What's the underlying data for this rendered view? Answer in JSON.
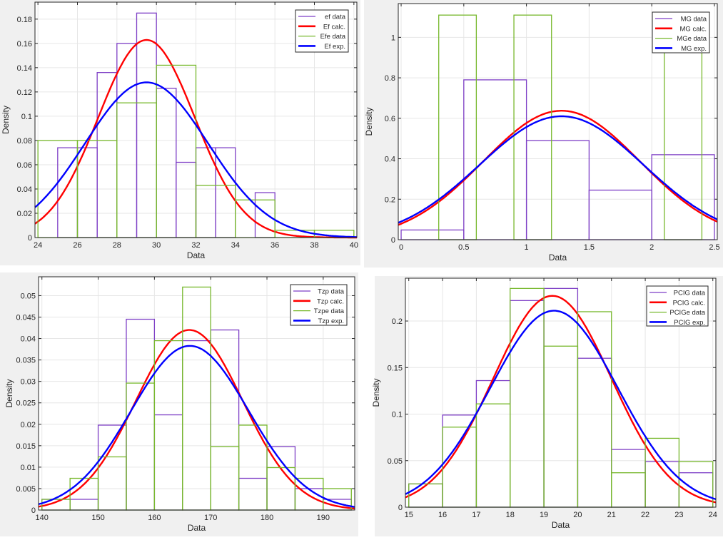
{
  "colors": {
    "hist_a": "#7e3fc6",
    "hist_b": "#77b82c",
    "calc": "#ff0000",
    "exp": "#0000ff",
    "figure_bg": "#f0f0f0",
    "grid": "#e6e6e6"
  },
  "chart_data": [
    {
      "type": "histogram+line",
      "xlabel": "Data",
      "ylabel": "Density",
      "xlim": [
        23.85,
        40.15
      ],
      "ylim": [
        0,
        0.194
      ],
      "grid": true,
      "legend_position": "top-right",
      "xticks": [
        "24",
        "26",
        "28",
        "30",
        "32",
        "34",
        "36",
        "38",
        "40"
      ],
      "xtick_values": [
        24,
        26,
        28,
        30,
        32,
        34,
        36,
        38,
        40
      ],
      "yticks": [
        "0",
        "0.02",
        "0.04",
        "0.06",
        "0.08",
        "0.1",
        "0.12",
        "0.14",
        "0.16",
        "0.18"
      ],
      "ytick_values": [
        0,
        0.02,
        0.04,
        0.06,
        0.08,
        0.1,
        0.12,
        0.14,
        0.16,
        0.18
      ],
      "series": [
        {
          "name": "ef data",
          "kind": "hist",
          "color_key": "hist_a",
          "edges": [
            25,
            26,
            27,
            28,
            29,
            30,
            31,
            32,
            33,
            34,
            35,
            36
          ],
          "values": [
            0.074,
            0.074,
            0.136,
            0.16,
            0.185,
            0.123,
            0.062,
            0.074,
            0.074,
            0,
            0.037
          ]
        },
        {
          "name": "Ef calc.",
          "kind": "normal",
          "color_key": "calc",
          "mean": 29.5,
          "sigma": 2.45
        },
        {
          "name": "Efe data",
          "kind": "hist",
          "color_key": "hist_b",
          "edges": [
            24,
            26,
            28,
            30,
            32,
            34,
            36,
            38,
            40
          ],
          "values": [
            0.08,
            0.08,
            0.111,
            0.142,
            0.043,
            0.031,
            0.006,
            0.006
          ]
        },
        {
          "name": "Ef exp.",
          "kind": "normal",
          "color_key": "exp",
          "mean": 29.5,
          "sigma": 3.12
        }
      ]
    },
    {
      "type": "histogram+line",
      "xlabel": "Data",
      "ylabel": "Density",
      "xlim": [
        -0.023,
        2.523
      ],
      "ylim": [
        0,
        1.167
      ],
      "grid": true,
      "legend_position": "top-right",
      "xticks": [
        "0",
        "0.5",
        "1",
        "1.5",
        "2",
        "2.5"
      ],
      "xtick_values": [
        0,
        0.5,
        1,
        1.5,
        2,
        2.5
      ],
      "yticks": [
        "0",
        "0.2",
        "0.4",
        "0.6",
        "0.8",
        "1"
      ],
      "ytick_values": [
        0,
        0.2,
        0.4,
        0.6,
        0.8,
        1
      ],
      "series": [
        {
          "name": "MG data",
          "kind": "hist",
          "color_key": "hist_a",
          "edges": [
            0,
            0.5,
            1,
            1.5,
            2,
            2.5
          ],
          "values": [
            0.048,
            0.79,
            0.49,
            0.245,
            0.42
          ]
        },
        {
          "name": "MG calc.",
          "kind": "normal",
          "color_key": "calc",
          "mean": 1.28,
          "sigma": 0.626
        },
        {
          "name": "MGe data",
          "kind": "hist",
          "color_key": "hist_b",
          "edges": [
            0.3,
            0.6,
            0.9,
            1.2,
            1.5,
            1.8,
            2.1,
            2.4
          ],
          "values": [
            1.11,
            0,
            1.11,
            0,
            0,
            0,
            1.11
          ]
        },
        {
          "name": "MG exp.",
          "kind": "normal",
          "color_key": "exp",
          "mean": 1.28,
          "sigma": 0.654
        }
      ]
    },
    {
      "type": "histogram+line",
      "xlabel": "Data",
      "ylabel": "Density",
      "xlim": [
        139.4,
        195.6
      ],
      "ylim": [
        0,
        0.0544
      ],
      "grid": true,
      "legend_position": "top-right",
      "xticks": [
        "140",
        "150",
        "160",
        "170",
        "180",
        "190"
      ],
      "xtick_values": [
        140,
        150,
        160,
        170,
        180,
        190
      ],
      "yticks": [
        "0",
        "0.005",
        "0.01",
        "0.015",
        "0.02",
        "0.025",
        "0.03",
        "0.035",
        "0.04",
        "0.045",
        "0.05"
      ],
      "ytick_values": [
        0,
        0.005,
        0.01,
        0.015,
        0.02,
        0.025,
        0.03,
        0.035,
        0.04,
        0.045,
        0.05
      ],
      "series": [
        {
          "name": "Tzp data",
          "kind": "hist",
          "color_key": "hist_a",
          "edges": [
            140,
            145,
            150,
            155,
            160,
            165,
            170,
            175,
            180,
            185,
            190,
            195
          ],
          "values": [
            0.0025,
            0.0025,
            0.0198,
            0.0445,
            0.0222,
            0.0395,
            0.042,
            0.0074,
            0.0148,
            0.005,
            0.0025
          ]
        },
        {
          "name": "Tzp calc.",
          "kind": "normal",
          "color_key": "calc",
          "mean": 166.2,
          "sigma": 9.5
        },
        {
          "name": "Tzpe data",
          "kind": "hist",
          "color_key": "hist_b",
          "edges": [
            140,
            145,
            150,
            155,
            160,
            165,
            170,
            175,
            180,
            185,
            190,
            195
          ],
          "values": [
            0.0025,
            0.0074,
            0.0124,
            0.0296,
            0.0395,
            0.052,
            0.0148,
            0.0198,
            0.0099,
            0.0074,
            0.005
          ]
        },
        {
          "name": "Tzp exp.",
          "kind": "normal",
          "color_key": "exp",
          "mean": 166.3,
          "sigma": 10.42
        }
      ]
    },
    {
      "type": "histogram+line",
      "xlabel": "Data",
      "ylabel": "Density",
      "xlim": [
        14.9,
        24.09
      ],
      "ylim": [
        0,
        0.246
      ],
      "grid": true,
      "legend_position": "top-right",
      "xticks": [
        "15",
        "16",
        "17",
        "18",
        "19",
        "20",
        "21",
        "22",
        "23",
        "24"
      ],
      "xtick_values": [
        15,
        16,
        17,
        18,
        19,
        20,
        21,
        22,
        23,
        24
      ],
      "yticks": [
        "0",
        "0.05",
        "0.1",
        "0.15",
        "0.2"
      ],
      "ytick_values": [
        0,
        0.05,
        0.1,
        0.15,
        0.2
      ],
      "series": [
        {
          "name": "PCIG data",
          "kind": "hist",
          "color_key": "hist_a",
          "edges": [
            15,
            16,
            17,
            18,
            19,
            20,
            21,
            22,
            23,
            24
          ],
          "values": [
            0.025,
            0.099,
            0.136,
            0.222,
            0.235,
            0.16,
            0.062,
            0.049,
            0.037
          ]
        },
        {
          "name": "PCIG calc.",
          "kind": "normal",
          "color_key": "calc",
          "mean": 19.25,
          "sigma": 1.757
        },
        {
          "name": "PCIGe data",
          "kind": "hist",
          "color_key": "hist_b",
          "edges": [
            15,
            16,
            17,
            18,
            19,
            20,
            21,
            22,
            23,
            24
          ],
          "values": [
            0.025,
            0.086,
            0.111,
            0.235,
            0.173,
            0.21,
            0.037,
            0.074,
            0.049
          ]
        },
        {
          "name": "PCIG exp.",
          "kind": "normal",
          "color_key": "exp",
          "mean": 19.3,
          "sigma": 1.89
        }
      ]
    }
  ]
}
